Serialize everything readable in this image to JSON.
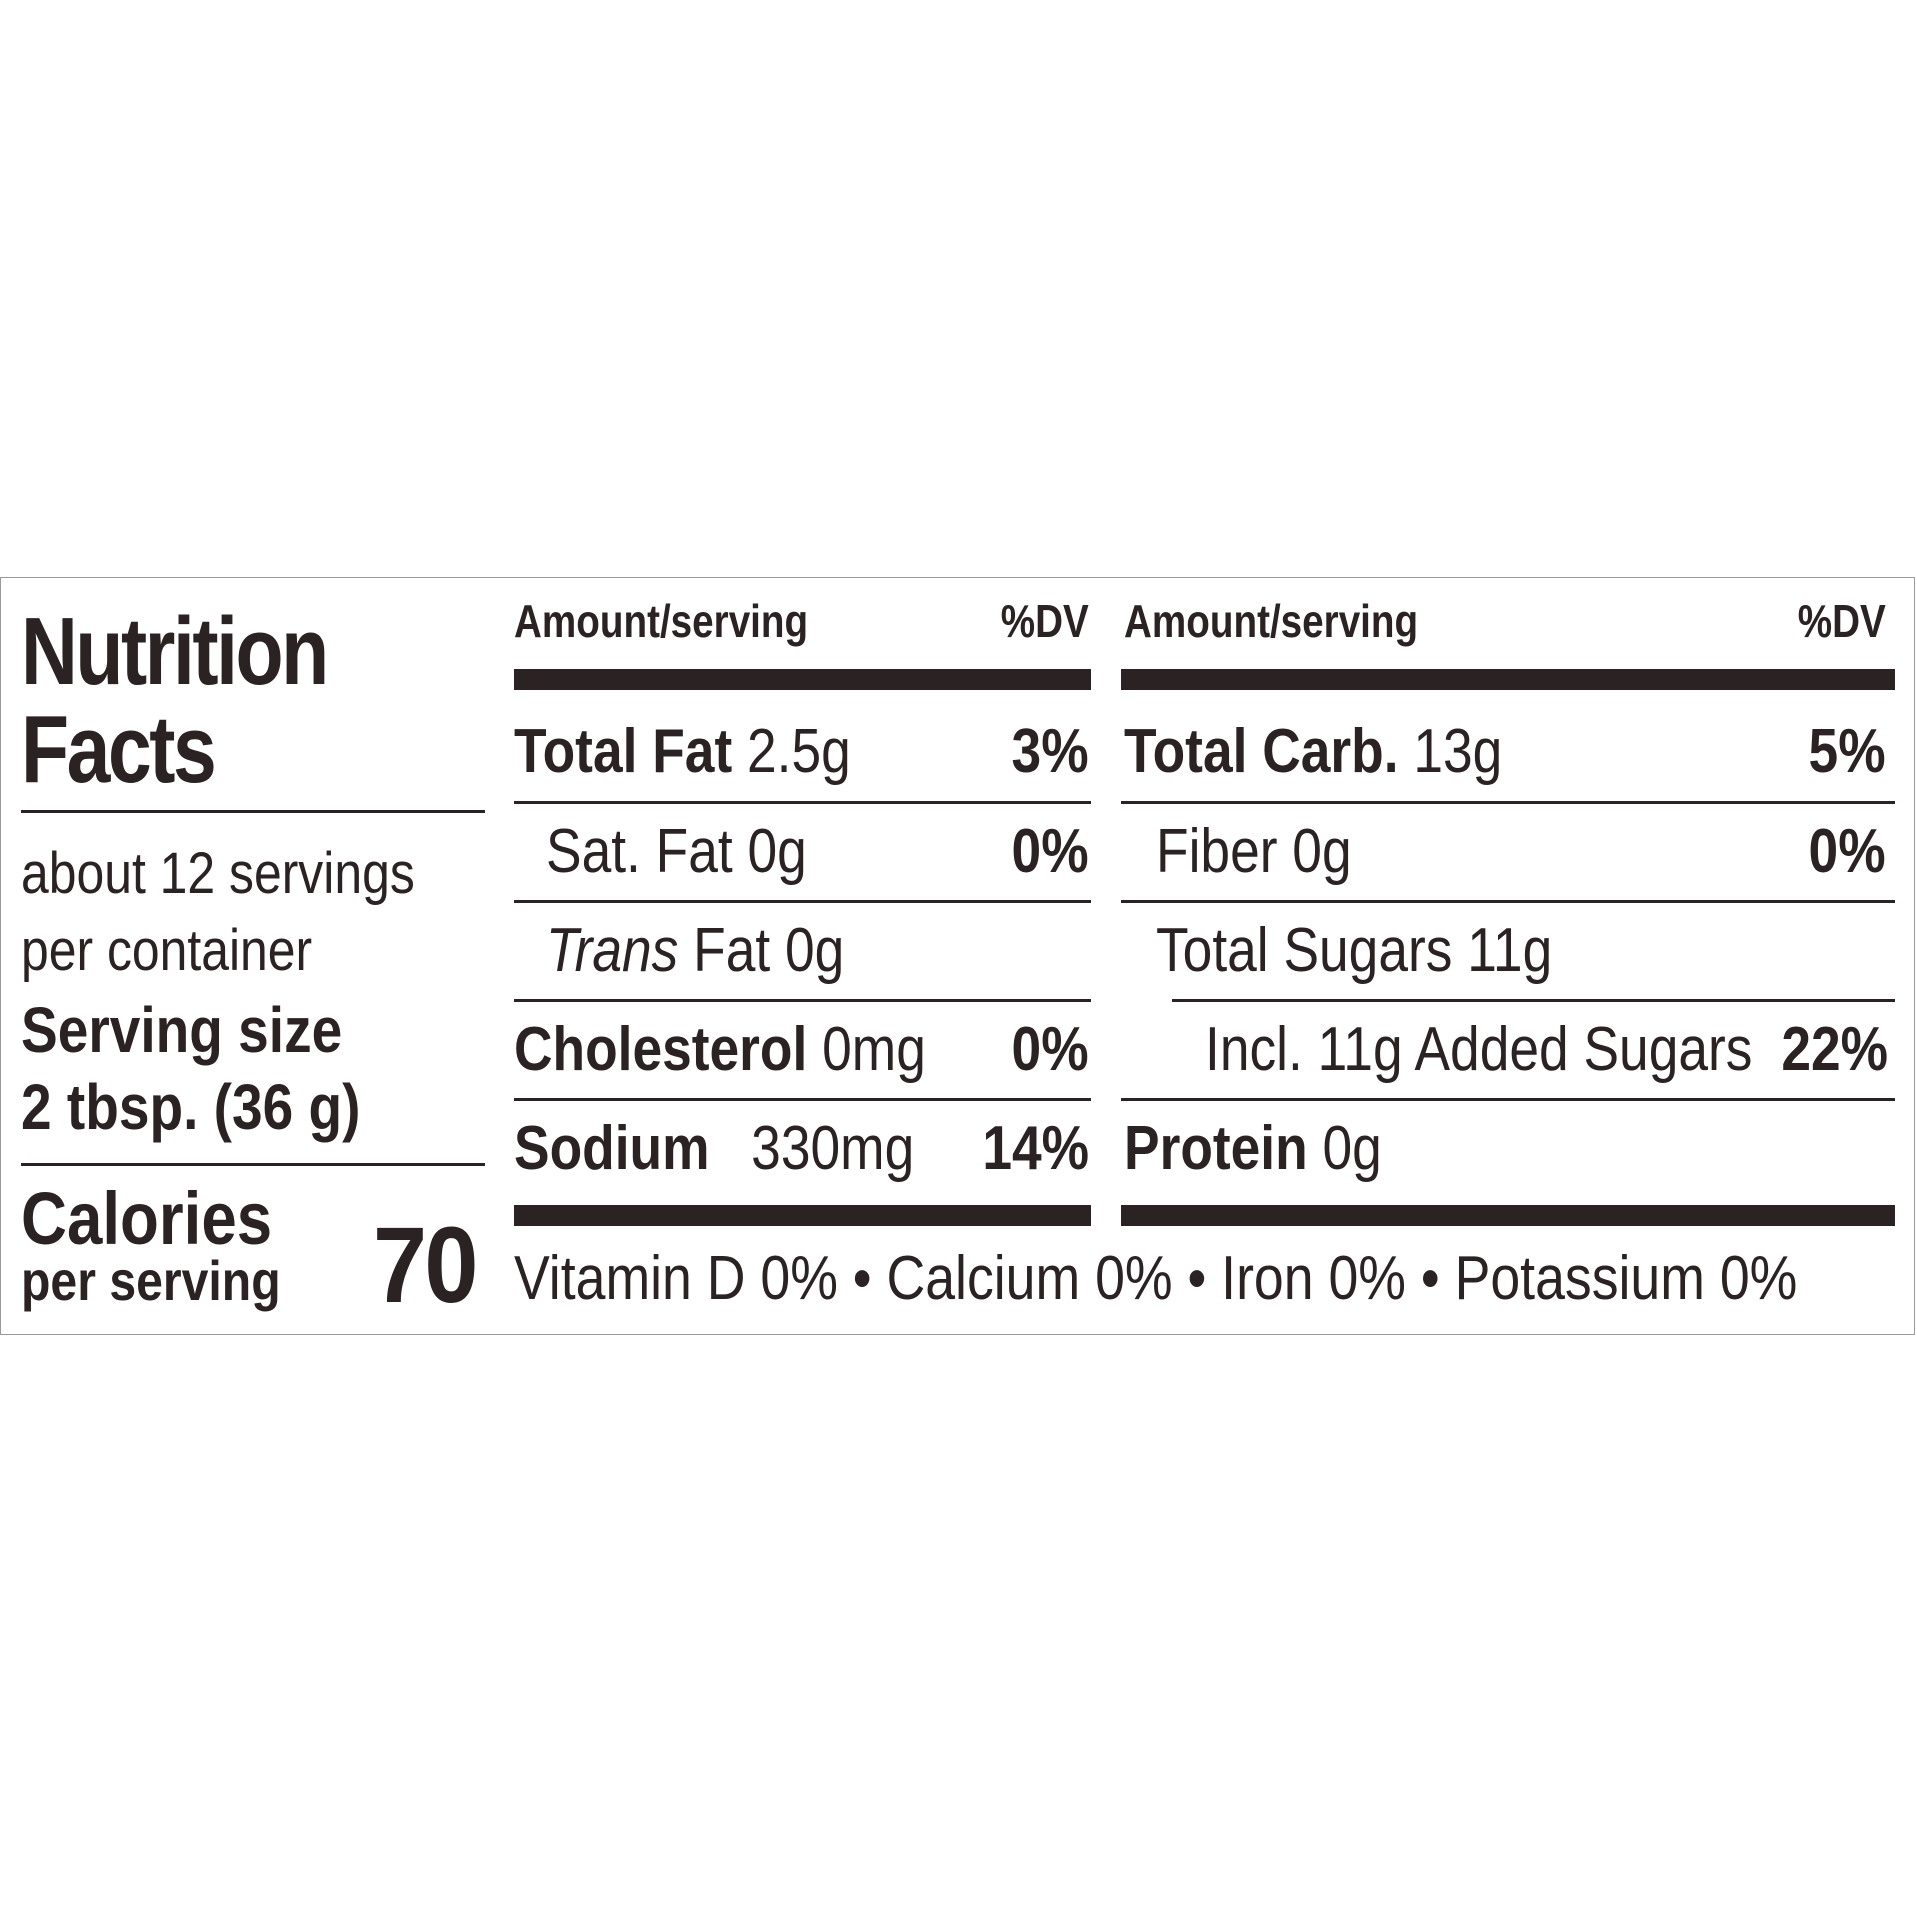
{
  "title": {
    "line1": "Nutrition",
    "line2": "Facts"
  },
  "servings": {
    "line1": "about 12 servings",
    "line2": "per container"
  },
  "serving_size": {
    "label": "Serving size",
    "value": "2 tbsp. (36 g)"
  },
  "calories": {
    "label": "Calories",
    "sub": "per serving",
    "value": "70"
  },
  "left_table": {
    "header_amount": "Amount/serving",
    "header_dv": "%DV",
    "rows": [
      {
        "name": "Total Fat",
        "amount": "2.5g",
        "dv": "3%"
      },
      {
        "name": "Sat. Fat",
        "amount": "0g",
        "dv": "0%"
      },
      {
        "name": "Trans",
        "amount": "Fat 0g",
        "dv": ""
      },
      {
        "name": "Cholesterol",
        "amount": "0mg",
        "dv": "0%"
      },
      {
        "name": "Sodium",
        "amount": "330mg",
        "dv": "14%"
      }
    ]
  },
  "right_table": {
    "header_amount": "Amount/serving",
    "header_dv": "%DV",
    "rows": [
      {
        "name": "Total Carb.",
        "amount": "13g",
        "dv": "5%"
      },
      {
        "name": "Fiber",
        "amount": "0g",
        "dv": "0%"
      },
      {
        "name": "Total Sugars",
        "amount": "11g",
        "dv": ""
      },
      {
        "name": "Incl. 11g Added Sugars",
        "amount": "",
        "dv": "22%"
      },
      {
        "name": "Protein",
        "amount": "0g",
        "dv": ""
      }
    ]
  },
  "vitamins": "Vitamin D 0% • Calcium 0% • Iron 0% • Potassium 0%",
  "colors": {
    "ink": "#2b2323",
    "border": "#9a9a9a",
    "background": "#ffffff"
  }
}
